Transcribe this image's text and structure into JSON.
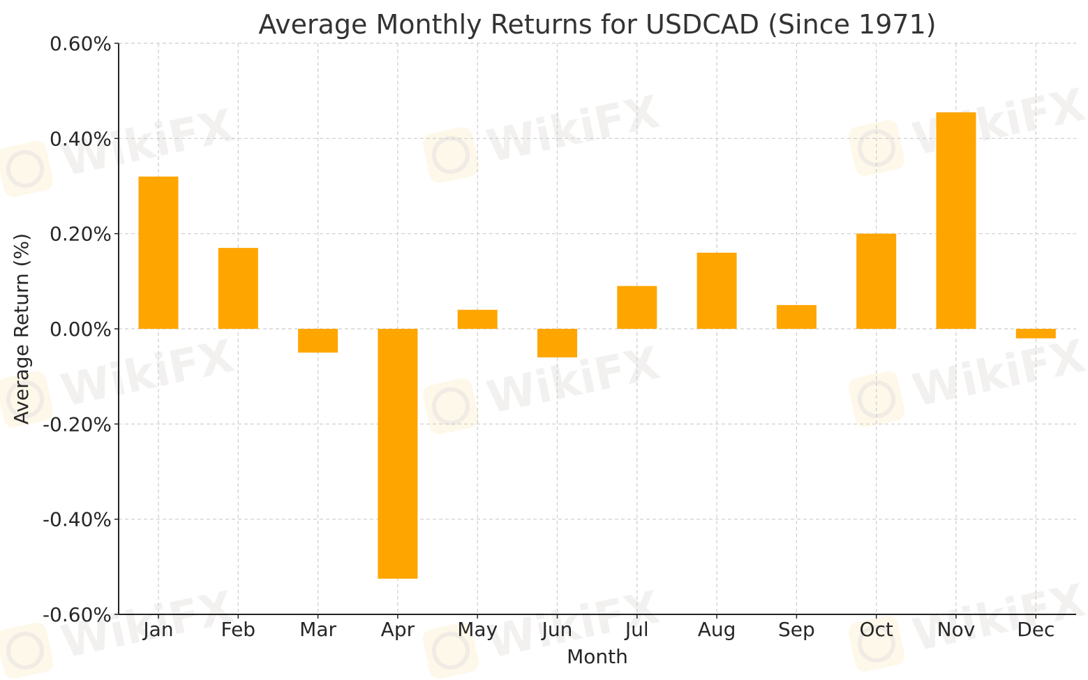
{
  "chart_data": {
    "type": "bar",
    "title": "Average Monthly Returns for USDCAD (Since 1971)",
    "xlabel": "Month",
    "ylabel": "Average Return (%)",
    "categories": [
      "Jan",
      "Feb",
      "Mar",
      "Apr",
      "May",
      "Jun",
      "Jul",
      "Aug",
      "Sep",
      "Oct",
      "Nov",
      "Dec"
    ],
    "values": [
      0.32,
      0.17,
      -0.05,
      -0.525,
      0.04,
      -0.06,
      0.09,
      0.16,
      0.05,
      0.2,
      0.455,
      -0.02
    ],
    "ylim": [
      -0.6,
      0.6
    ],
    "yticks": [
      0.6,
      0.4,
      0.2,
      0.0,
      -0.2,
      -0.4,
      -0.6
    ],
    "ytick_labels": [
      "0.60%",
      "0.40%",
      "0.20%",
      "0.00%",
      "-0.20%",
      "-0.40%",
      "-0.60%"
    ],
    "grid": true,
    "bar_color": "#FFA500"
  },
  "watermark": {
    "text": "WikiFX"
  }
}
